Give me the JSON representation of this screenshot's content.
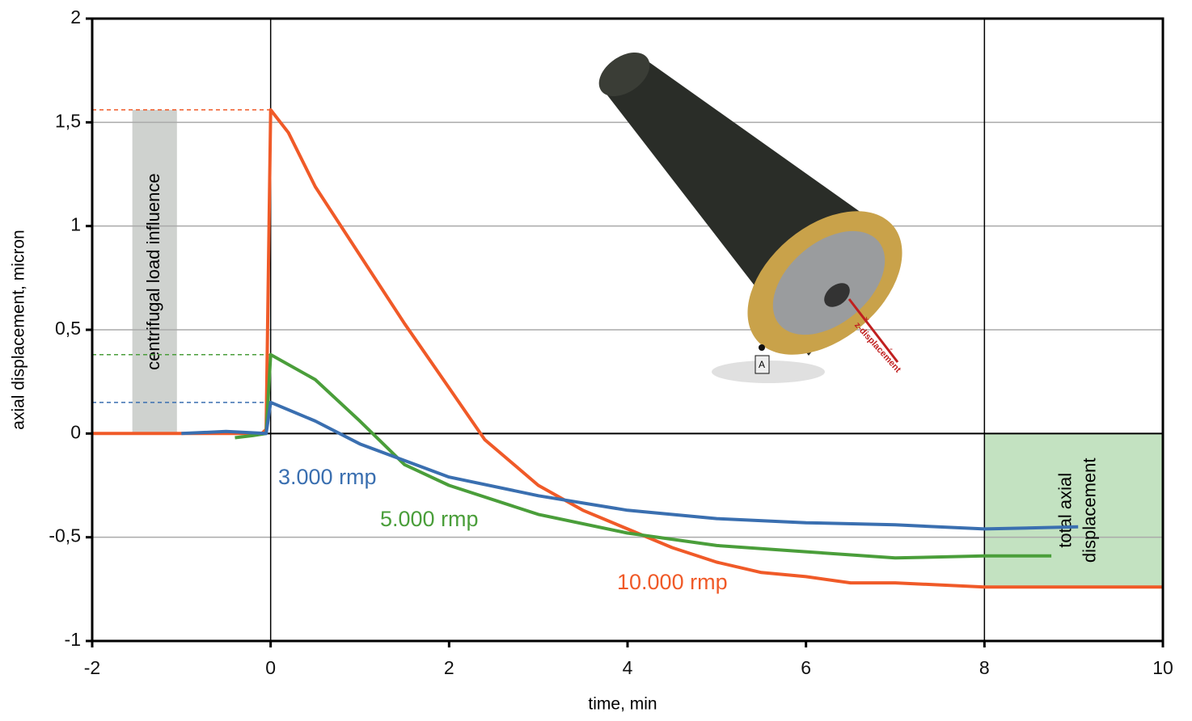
{
  "chart_data": {
    "type": "line",
    "xlabel": "time, min",
    "ylabel": "axial displacement, micron",
    "xlim": [
      -2,
      10
    ],
    "ylim": [
      -1,
      2
    ],
    "xticks": [
      -2,
      0,
      2,
      4,
      6,
      8,
      10
    ],
    "yticks": [
      -1,
      {
        "value": -0.5,
        "label": "-0,5"
      },
      0,
      {
        "value": 0.5,
        "label": "0,5"
      },
      1,
      {
        "value": 1.5,
        "label": "1,5"
      },
      2
    ],
    "grid": true,
    "vlines": [
      0,
      8
    ],
    "series": [
      {
        "name": "10.000 rmp",
        "color": "#f05a28",
        "x": [
          -2,
          -1.5,
          -1,
          -0.5,
          -0.1,
          -0.05,
          0,
          0.2,
          0.5,
          1,
          1.5,
          2,
          2.4,
          3,
          3.5,
          4,
          4.5,
          5,
          5.5,
          6,
          6.5,
          7,
          8,
          9,
          10
        ],
        "values": [
          0,
          0,
          0,
          0,
          0,
          0.02,
          1.56,
          1.45,
          1.19,
          0.86,
          0.53,
          0.22,
          -0.03,
          -0.25,
          -0.37,
          -0.46,
          -0.55,
          -0.62,
          -0.67,
          -0.69,
          -0.72,
          -0.72,
          -0.74,
          -0.74,
          -0.74
        ]
      },
      {
        "name": "5.000 rmp",
        "color": "#4a9e3a",
        "x": [
          -0.4,
          -0.2,
          -0.05,
          0,
          0.5,
          1,
          1.5,
          2,
          3,
          4,
          5,
          6,
          7,
          8,
          8.75
        ],
        "values": [
          -0.02,
          -0.01,
          0,
          0.38,
          0.26,
          0.06,
          -0.15,
          -0.25,
          -0.39,
          -0.48,
          -0.54,
          -0.57,
          -0.6,
          -0.59,
          -0.59
        ]
      },
      {
        "name": "3.000 rmp",
        "color": "#3a6fb0",
        "x": [
          -1,
          -0.5,
          -0.05,
          0,
          0.5,
          1,
          1.5,
          2,
          3,
          4,
          5,
          6,
          7,
          8,
          9.05
        ],
        "values": [
          0,
          0.01,
          0,
          0.15,
          0.06,
          -0.05,
          -0.13,
          -0.21,
          -0.3,
          -0.37,
          -0.41,
          -0.43,
          -0.44,
          -0.46,
          -0.45
        ]
      }
    ],
    "reference_levels": [
      1.56,
      0.38,
      0.15
    ],
    "regions": [
      {
        "label": "centrifugal load influence",
        "x": [
          -1.55,
          -1.05
        ],
        "y": [
          0,
          1.56
        ],
        "color": "#cfd2cf"
      },
      {
        "label": "total axial displacement",
        "x": [
          8,
          10
        ],
        "y": [
          -0.74,
          0
        ],
        "color": "#c3e2c1"
      }
    ],
    "image_labels": {
      "point": "A",
      "arrow": "z-displacement",
      "plus": "+",
      "minus": "-"
    }
  }
}
